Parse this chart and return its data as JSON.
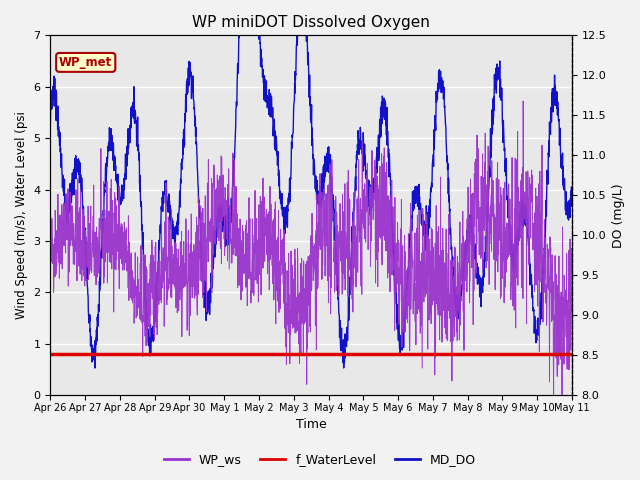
{
  "title": "WP miniDOT Dissolved Oxygen",
  "xlabel": "Time",
  "ylabel_left": "Wind Speed (m/s), Water Level (psi",
  "ylabel_right": "DO (mg/L)",
  "ylim_left": [
    0.0,
    7.0
  ],
  "ylim_right": [
    8.0,
    12.5
  ],
  "plot_bg_color": "#e8e8e8",
  "fig_bg_color": "#f2f2f2",
  "wp_met_label": "WP_met",
  "wp_met_color": "#aa0000",
  "wp_met_bg": "#ffffcc",
  "hline_value": 0.8,
  "hline_color": "#dd0000",
  "hline_linewidth": 2.5,
  "wp_ws_color": "#9933cc",
  "md_do_color": "#1111cc",
  "f_wl_color": "#dd0000",
  "legend_labels": [
    "WP_ws",
    "f_WaterLevel",
    "MD_DO"
  ],
  "legend_colors": [
    "#9933cc",
    "#dd0000",
    "#1111cc"
  ],
  "xtick_labels": [
    "Apr 26",
    "Apr 27",
    "Apr 28",
    "Apr 29",
    "Apr 30",
    "May 1",
    "May 2",
    "May 3",
    "May 4",
    "May 5",
    "May 6",
    "May 7",
    "May 8",
    "May 9",
    "May 10",
    "May 11"
  ],
  "num_days": 15,
  "seed": 42
}
